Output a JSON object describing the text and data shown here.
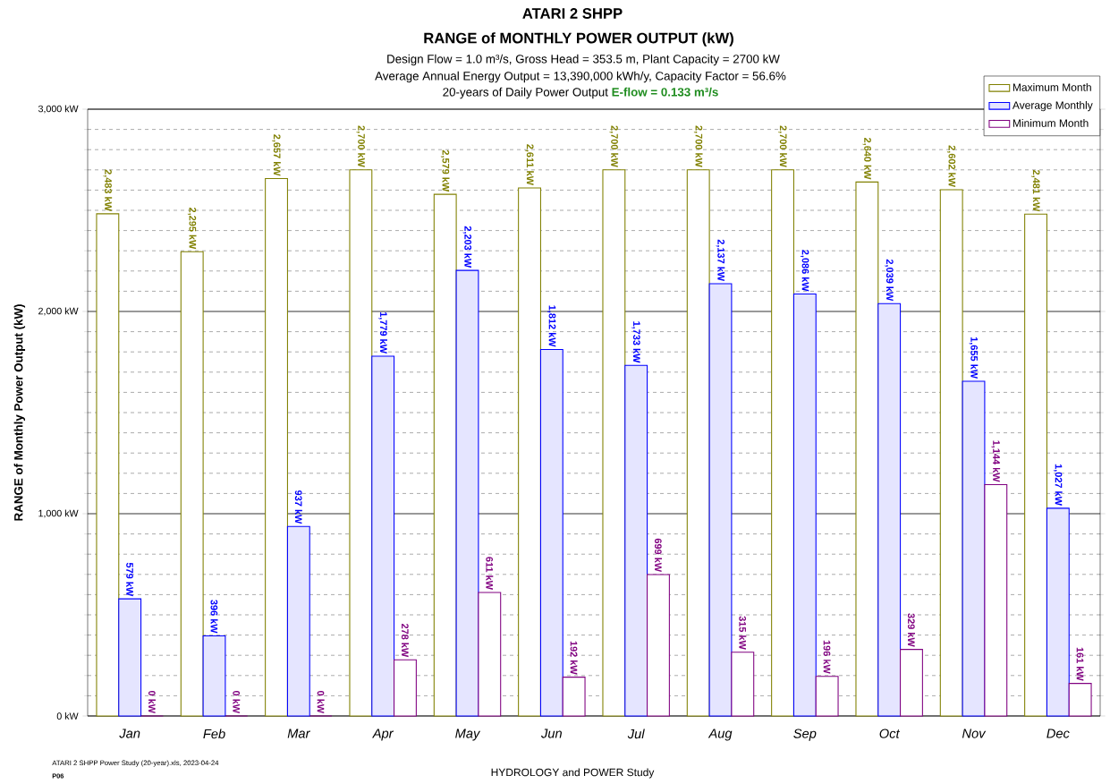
{
  "chart_data": {
    "type": "bar",
    "title": "ATARI 2 SHPP",
    "subtitle": "RANGE of MONTHLY POWER OUTPUT (kW)",
    "ylabel": "RANGE of Monthly Power Output (kW)",
    "annotations": [
      "Design Flow = 1.0 m³/s, Gross Head = 353.5 m, Plant Capacity = 2700 kW",
      "Average Annual Energy Output = 13,390,000 kWh/y, Capacity Factor = 56.6%",
      "20-years of Daily Power Output",
      "E-flow = 0.133 m³/s",
      "ATARI 2 SHPP Power Study (20-year).xls, 2023-04-24",
      "P06",
      "HYDROLOGY and POWER Study"
    ],
    "categories": [
      "Jan",
      "Feb",
      "Mar",
      "Apr",
      "May",
      "Jun",
      "Jul",
      "Aug",
      "Sep",
      "Oct",
      "Nov",
      "Dec"
    ],
    "series": [
      {
        "name": "Maximum Month",
        "color": "#808000",
        "values": [
          2483,
          2295,
          2657,
          2700,
          2579,
          2611,
          2700,
          2700,
          2700,
          2640,
          2602,
          2481
        ],
        "value_labels": [
          "2,483 kW",
          "2,295 kW",
          "2,657 kW",
          "2,700 kW",
          "2,579 kW",
          "2,611 kW",
          "2,700 kW",
          "2,700 kW",
          "2,700 kW",
          "2,640 kW",
          "2,602 kW",
          "2,481 kW"
        ]
      },
      {
        "name": "Average Monthly",
        "color": "#0000ff",
        "values": [
          579,
          396,
          937,
          1779,
          2203,
          1812,
          1733,
          2137,
          2086,
          2039,
          1655,
          1027
        ],
        "value_labels": [
          "579 kW",
          "396 kW",
          "937 kW",
          "1,779 kW",
          "2,203 kW",
          "1,812 kW",
          "1,733 kW",
          "2,137 kW",
          "2,086 kW",
          "2,039 kW",
          "1,655 kW",
          "1,027 kW"
        ]
      },
      {
        "name": "Minimum Month",
        "color": "#800080",
        "values": [
          0,
          0,
          0,
          278,
          611,
          192,
          699,
          315,
          196,
          329,
          1144,
          161
        ],
        "value_labels": [
          "0 kW",
          "0 kW",
          "0 kW",
          "278 kW",
          "611 kW",
          "192 kW",
          "699 kW",
          "315 kW",
          "196 kW",
          "329 kW",
          "1,144 kW",
          "161 kW"
        ]
      }
    ],
    "ylim": [
      0,
      3000
    ],
    "yticks": [
      {
        "value": 0,
        "label": "0 kW"
      },
      {
        "value": 1000,
        "label": "1,000 kW"
      },
      {
        "value": 2000,
        "label": "2,000 kW"
      },
      {
        "value": 3000,
        "label": "3,000 kW"
      }
    ],
    "grid": "y",
    "legend": "top right"
  }
}
